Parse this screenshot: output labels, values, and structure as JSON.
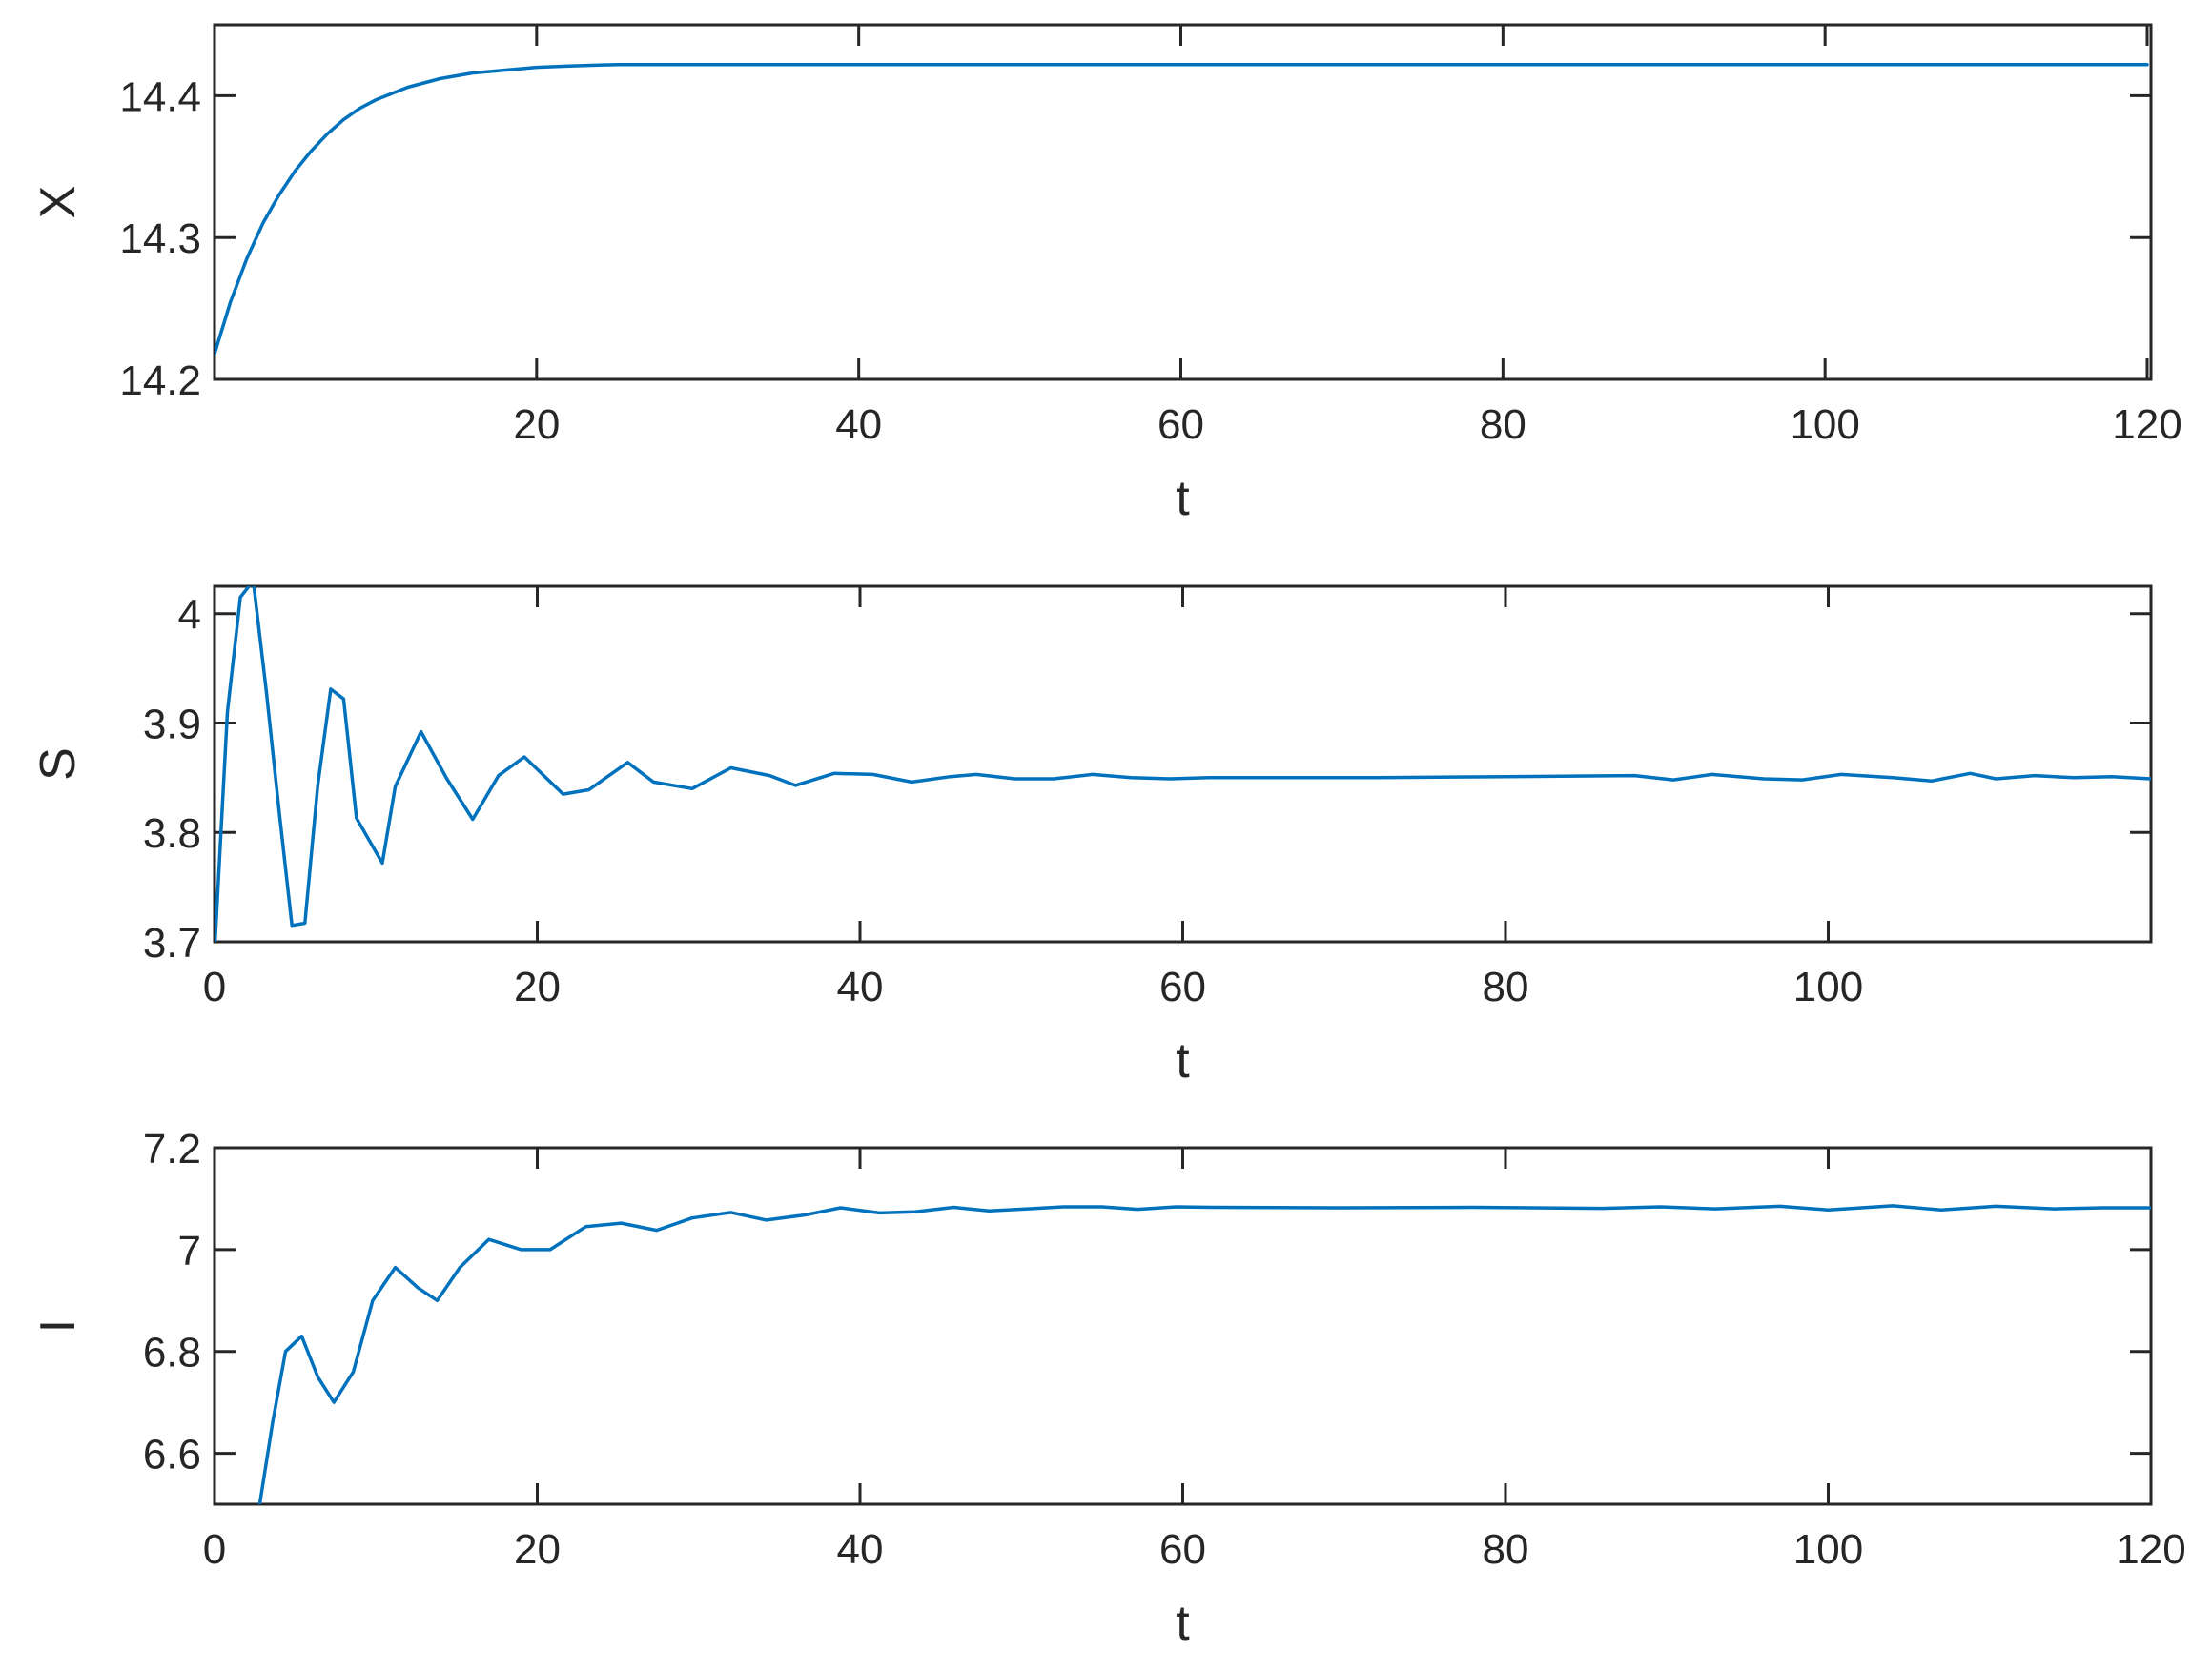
{
  "colors": {
    "series": "#0072BD",
    "axes": "#262626",
    "background": "#ffffff"
  },
  "chart_data": [
    {
      "type": "line",
      "xlabel": "t",
      "ylabel": "X",
      "xlim": [
        0,
        120
      ],
      "ylim": [
        14.2,
        14.45
      ],
      "xticks": [
        20,
        40,
        60,
        80,
        100,
        120
      ],
      "xtick_labels": [
        "20",
        "40",
        "60",
        "80",
        "100",
        "120"
      ],
      "yticks": [
        14.2,
        14.3,
        14.4
      ],
      "ytick_labels": [
        "14.2",
        "14.3",
        "14.4"
      ],
      "grid": false,
      "series": [
        {
          "x": [
            0,
            1,
            2,
            3,
            4,
            5,
            6,
            7,
            8,
            9,
            10,
            12,
            14,
            16,
            18,
            20,
            22,
            25,
            30,
            40,
            60,
            80,
            100,
            120
          ],
          "y": [
            14.218,
            14.255,
            14.285,
            14.31,
            14.33,
            14.347,
            14.361,
            14.373,
            14.383,
            14.391,
            14.397,
            14.406,
            14.412,
            14.416,
            14.418,
            14.42,
            14.421,
            14.422,
            14.422,
            14.422,
            14.422,
            14.422,
            14.422,
            14.422
          ]
        }
      ]
    },
    {
      "type": "line",
      "xlabel": "t",
      "ylabel": "S",
      "xlim": [
        0,
        120
      ],
      "ylim": [
        3.7,
        4.025
      ],
      "xticks": [
        0,
        20,
        40,
        60,
        80,
        100
      ],
      "xtick_labels": [
        "0",
        "20",
        "40",
        "60",
        "80",
        "100"
      ],
      "yticks": [
        3.7,
        3.8,
        3.9,
        4.0
      ],
      "ytick_labels": [
        "3.7",
        "3.8",
        "3.9",
        "4"
      ],
      "grid": false,
      "series": [
        {
          "x": [
            0,
            0.8,
            1.6,
            2.4,
            3.2,
            4.0,
            4.8,
            5.6,
            6.4,
            7.2,
            8.0,
            8.8,
            10.4,
            11.2,
            12.8,
            14.4,
            16.0,
            17.6,
            19.2,
            21.6,
            23.2,
            25.6,
            27.2,
            29.6,
            32.0,
            34.4,
            36.0,
            38.4,
            40.8,
            43.2,
            45.6,
            47.2,
            49.6,
            52.0,
            54.4,
            56.8,
            59.2,
            61.6,
            64.0,
            72.0,
            80.0,
            88.0,
            90.4,
            92.8,
            96.0,
            98.4,
            100.8,
            104.0,
            106.4,
            108.8,
            110.4,
            112.8,
            115.2,
            117.6,
            120
          ],
          "y": [
            3.69,
            3.91,
            4.015,
            4.03,
            3.93,
            3.82,
            3.715,
            3.717,
            3.843,
            3.931,
            3.922,
            3.813,
            3.772,
            3.842,
            3.892,
            3.849,
            3.812,
            3.852,
            3.869,
            3.835,
            3.839,
            3.864,
            3.846,
            3.84,
            3.859,
            3.852,
            3.843,
            3.854,
            3.853,
            3.846,
            3.851,
            3.853,
            3.849,
            3.849,
            3.853,
            3.85,
            3.849,
            3.85,
            3.85,
            3.85,
            3.851,
            3.852,
            3.848,
            3.853,
            3.849,
            3.848,
            3.853,
            3.85,
            3.847,
            3.854,
            3.849,
            3.852,
            3.85,
            3.851,
            3.849
          ]
        }
      ]
    },
    {
      "type": "line",
      "xlabel": "t",
      "ylabel": "I",
      "xlim": [
        0,
        120
      ],
      "ylim": [
        6.5,
        7.2
      ],
      "xticks": [
        0,
        20,
        40,
        60,
        80,
        100,
        120
      ],
      "xtick_labels": [
        "0",
        "20",
        "40",
        "60",
        "80",
        "100",
        "120"
      ],
      "yticks": [
        6.6,
        6.8,
        7.0,
        7.2
      ],
      "ytick_labels": [
        "6.6",
        "6.8",
        "7",
        "7.2"
      ],
      "grid": false,
      "series": [
        {
          "x": [
            2.8,
            3.6,
            4.4,
            5.4,
            6.4,
            7.4,
            8.6,
            9.8,
            11.2,
            12.6,
            13.8,
            15.2,
            17.0,
            19.0,
            20.8,
            23.0,
            25.2,
            27.4,
            29.6,
            32.0,
            34.2,
            36.6,
            38.8,
            41.2,
            43.4,
            45.8,
            48.0,
            50.4,
            52.6,
            55.0,
            57.2,
            59.6,
            62.0,
            70.0,
            78.0,
            86.0,
            89.6,
            93.0,
            97.0,
            100.0,
            104.0,
            107.0,
            110.4,
            114.0,
            117.0,
            120
          ],
          "y": [
            6.5,
            6.66,
            6.8,
            6.83,
            6.75,
            6.7,
            6.76,
            6.9,
            6.965,
            6.925,
            6.9,
            6.965,
            7.02,
            7.0,
            7.0,
            7.045,
            7.052,
            7.038,
            7.062,
            7.073,
            7.058,
            7.068,
            7.082,
            7.072,
            7.074,
            7.083,
            7.076,
            7.08,
            7.084,
            7.084,
            7.079,
            7.084,
            7.083,
            7.082,
            7.083,
            7.081,
            7.084,
            7.08,
            7.085,
            7.078,
            7.086,
            7.078,
            7.085,
            7.08,
            7.082,
            7.082
          ]
        }
      ]
    }
  ]
}
